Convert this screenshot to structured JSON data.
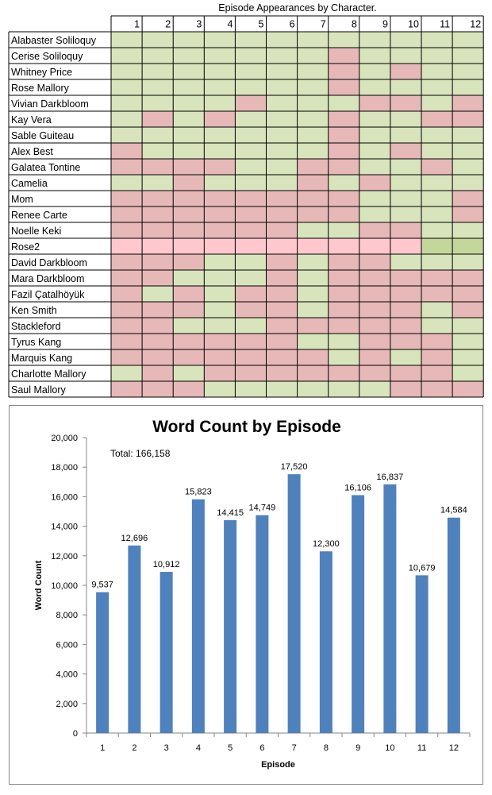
{
  "grid": {
    "title": "Episode Appearances by Character.",
    "episodes": [
      "1",
      "2",
      "3",
      "4",
      "5",
      "6",
      "7",
      "8",
      "9",
      "10",
      "11",
      "12"
    ],
    "legend_colors": {
      "Y": "#d8e4bc",
      "N": "#e6b8b7",
      "L": "#ffc7ce",
      "D": "#c4d79b"
    },
    "rows": [
      {
        "name": "Alabaster Soliloquy",
        "cells": "YYYYYYYYYYYY"
      },
      {
        "name": "Cerise Soliloquy",
        "cells": "YYYYYYYNYYYY"
      },
      {
        "name": "Whitney Price",
        "cells": "YYYYYYYNYNYY"
      },
      {
        "name": "Rose Mallory",
        "cells": "YYYYYYYNYYYY"
      },
      {
        "name": "Vivian Darkbloom",
        "cells": "YYYYNYYYNNYN"
      },
      {
        "name": "Kay Vera",
        "cells": "YNYNYYYNYYNN"
      },
      {
        "name": "Sable Guiteau",
        "cells": "YYYYYYYNYYYY"
      },
      {
        "name": "Alex Best",
        "cells": "NYYYYYYNYNYY"
      },
      {
        "name": "Galatea Tontine",
        "cells": "NNNNYYNNYYNY"
      },
      {
        "name": "Camelia",
        "cells": "YYNYYYNYNYYY"
      },
      {
        "name": "Mom",
        "cells": "NNNNNNNNYYYN"
      },
      {
        "name": "Renee Carte",
        "cells": "NNNNNNNNYYYN"
      },
      {
        "name": "Noelle Keki",
        "cells": "NNNNNNYYNNYY"
      },
      {
        "name": "Rose2",
        "cells": "LLLLLLLLLLDD"
      },
      {
        "name": "David Darkbloom",
        "cells": "NNNYYNYNNYYY"
      },
      {
        "name": "Mara Darkbloom",
        "cells": "NNYYYNYNNNNN"
      },
      {
        "name": "Fazil Çatalhöyük",
        "cells": "NYNYNNYNNNNN"
      },
      {
        "name": "Ken Smith",
        "cells": "NNNYNNYNNNYN"
      },
      {
        "name": "Stackleford",
        "cells": "NNYYYNNNNNYY"
      },
      {
        "name": "Tyrus Kang",
        "cells": "NNNNNNYYNNNY"
      },
      {
        "name": "Marquis Kang",
        "cells": "NNNNNNNYNYNY"
      },
      {
        "name": "Charlotte Mallory",
        "cells": "YNYNNNNNNNNY"
      },
      {
        "name": "Saul Mallory",
        "cells": "NNNYYYYYYNNN"
      }
    ]
  },
  "chart_data": {
    "type": "bar",
    "title": "Word Count by Episode",
    "xlabel": "Episode",
    "ylabel": "Word Count",
    "annotation": "Total: 166,158",
    "categories": [
      "1",
      "2",
      "3",
      "4",
      "5",
      "6",
      "7",
      "8",
      "9",
      "10",
      "11",
      "12"
    ],
    "values": [
      9537,
      12696,
      10912,
      15823,
      14415,
      14749,
      17520,
      12300,
      16106,
      16837,
      10679,
      14584
    ],
    "value_labels": [
      "9,537",
      "12,696",
      "10,912",
      "15,823",
      "14,415",
      "14,749",
      "17,520",
      "12,300",
      "16,106",
      "16,837",
      "10,679",
      "14,584"
    ],
    "ylim": [
      0,
      20000
    ],
    "yticks": [
      0,
      2000,
      4000,
      6000,
      8000,
      10000,
      12000,
      14000,
      16000,
      18000,
      20000
    ],
    "ytick_labels": [
      "0",
      "2,000",
      "4,000",
      "6,000",
      "8,000",
      "10,000",
      "12,000",
      "14,000",
      "16,000",
      "18,000",
      "20,000"
    ],
    "grid": false,
    "legend": "none",
    "bar_color": "#4f81bd"
  }
}
